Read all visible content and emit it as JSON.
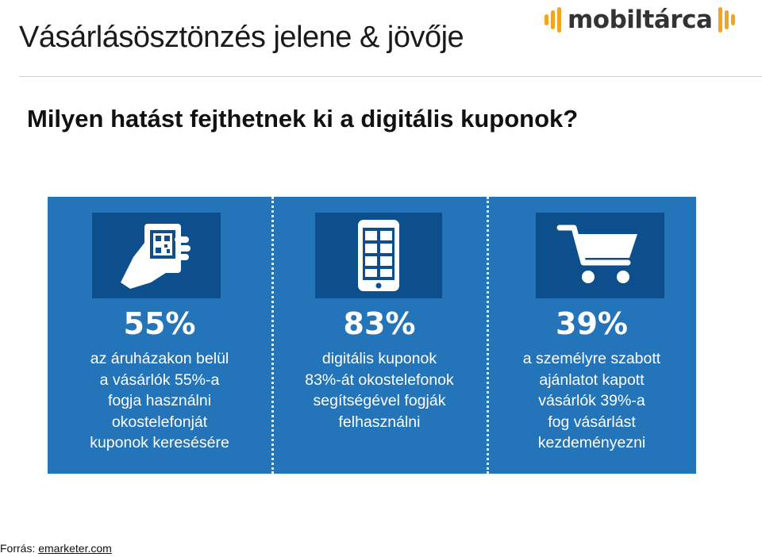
{
  "header": {
    "title": "Vásárlásösztönzés jelene & jövője",
    "logo_text": "mobiltárca",
    "logo_color": "#f3a521"
  },
  "subtitle": "Milyen hatást fejthetnek ki a digitális kuponok?",
  "infographic": {
    "background": "#2374b8",
    "icon_box_color": "#0c4f8c",
    "columns": [
      {
        "icon": "hand-phone-qr-icon",
        "percent": "55%",
        "lines": [
          "az áruházakon belül",
          "a vásárlók 55%-a",
          "fogja használni",
          "okostelefonját",
          "kuponok keresésére"
        ]
      },
      {
        "icon": "smartphone-icon",
        "percent": "83%",
        "lines": [
          "digitális kuponok",
          "83%-át okostelefonok",
          "segítségével fogják",
          "felhasználni"
        ]
      },
      {
        "icon": "shopping-cart-icon",
        "percent": "39%",
        "lines": [
          "a személyre szabott",
          "ajánlatot kapott",
          "vásárlók 39%-a",
          "fog vásárlást",
          "kezdeményezni"
        ]
      }
    ]
  },
  "source": {
    "label": "Forrás:",
    "link": "emarketer.com"
  }
}
